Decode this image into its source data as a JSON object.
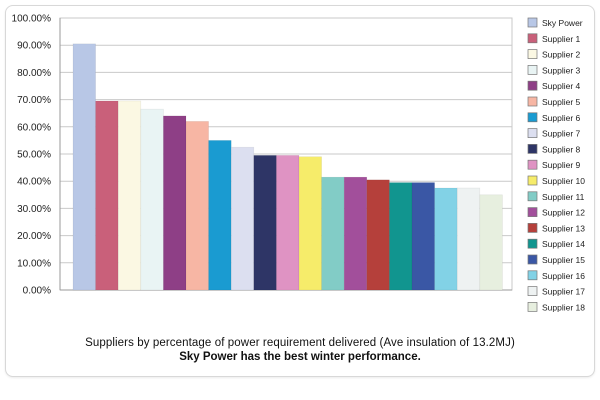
{
  "caption": {
    "line1": "Suppliers by percentage of power requirement delivered (Ave insulation of 13.2MJ)",
    "line2": "Sky Power has the best winter performance."
  },
  "chart_data": {
    "type": "bar",
    "title": "",
    "xlabel": "",
    "ylabel": "",
    "ylim": [
      0,
      100
    ],
    "yticks": [
      "0.00%",
      "10.00%",
      "20.00%",
      "30.00%",
      "40.00%",
      "50.00%",
      "60.00%",
      "70.00%",
      "80.00%",
      "90.00%",
      "100.00%"
    ],
    "ytick_values": [
      0,
      10,
      20,
      30,
      40,
      50,
      60,
      70,
      80,
      90,
      100
    ],
    "grid": true,
    "legend_position": "right",
    "categories": [
      "Sky Power",
      "Supplier 1",
      "Supplier 2",
      "Supplier 3",
      "Supplier 4",
      "Supplier 5",
      "Supplier 6",
      "Supplier 7",
      "Supplier 8",
      "Supplier 9",
      "Supplier 10",
      "Supplier 11",
      "Supplier 12",
      "Supplier 13",
      "Supplier 14",
      "Supplier 15",
      "Supplier 16",
      "Supplier 17",
      "Supplier 18"
    ],
    "values": [
      90.5,
      69.5,
      69.5,
      66.5,
      64,
      62,
      55,
      52.5,
      49.5,
      49.5,
      49,
      41.5,
      41.5,
      40.5,
      39.5,
      39.5,
      37.5,
      37.5,
      35
    ],
    "colors": [
      "#b8c7e6",
      "#c9607a",
      "#fbf8e3",
      "#e9f4f4",
      "#8e3f86",
      "#f7b6a4",
      "#1a9bd1",
      "#dcdff0",
      "#2e3566",
      "#df93c3",
      "#f6ec6a",
      "#82ccc6",
      "#a24f9b",
      "#b5403b",
      "#11958f",
      "#3a57a5",
      "#82d2e6",
      "#eef2f2",
      "#e7efdf"
    ]
  }
}
